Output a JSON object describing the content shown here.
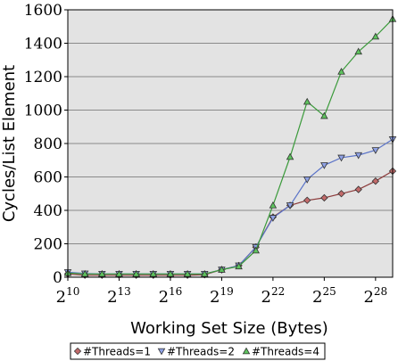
{
  "chart_data": {
    "type": "line",
    "title": "",
    "xlabel": "Working Set Size (Bytes)",
    "ylabel": "Cycles/List Element",
    "x_scale": "log2",
    "x_tick_base": "2",
    "x_tick_exponents": [
      "10",
      "13",
      "16",
      "19",
      "22",
      "25",
      "28"
    ],
    "y_ticks": [
      "0",
      "200",
      "400",
      "600",
      "800",
      "1000",
      "1200",
      "1400",
      "1600"
    ],
    "xlim": [
      10,
      29
    ],
    "ylim": [
      0,
      1600
    ],
    "grid": "horizontal",
    "plot_background": "#e3e3e3",
    "legend_placement": "bottom",
    "x": [
      10,
      11,
      12,
      13,
      14,
      15,
      16,
      17,
      18,
      19,
      20,
      21,
      22,
      23,
      24,
      25,
      26,
      27,
      28,
      29
    ],
    "series": [
      {
        "name": "#Threads=1",
        "color": "#8b3a3a",
        "fill": "#c26a6a",
        "marker": "diamond",
        "values": [
          20,
          12,
          12,
          12,
          12,
          12,
          12,
          12,
          15,
          45,
          70,
          180,
          360,
          430,
          460,
          475,
          500,
          525,
          575,
          635
        ]
      },
      {
        "name": "#Threads=2",
        "color": "#5a73c8",
        "fill": "#8fa2e6",
        "marker": "triangle-down",
        "values": [
          30,
          22,
          20,
          20,
          20,
          20,
          20,
          20,
          20,
          45,
          70,
          180,
          355,
          430,
          585,
          670,
          715,
          730,
          760,
          825
        ]
      },
      {
        "name": "#Threads=4",
        "color": "#3a9a3a",
        "fill": "#5ec45e",
        "marker": "triangle-up",
        "values": [
          25,
          20,
          20,
          20,
          20,
          20,
          20,
          20,
          20,
          45,
          65,
          160,
          430,
          720,
          1050,
          965,
          1230,
          1350,
          1440,
          1545
        ]
      }
    ]
  }
}
